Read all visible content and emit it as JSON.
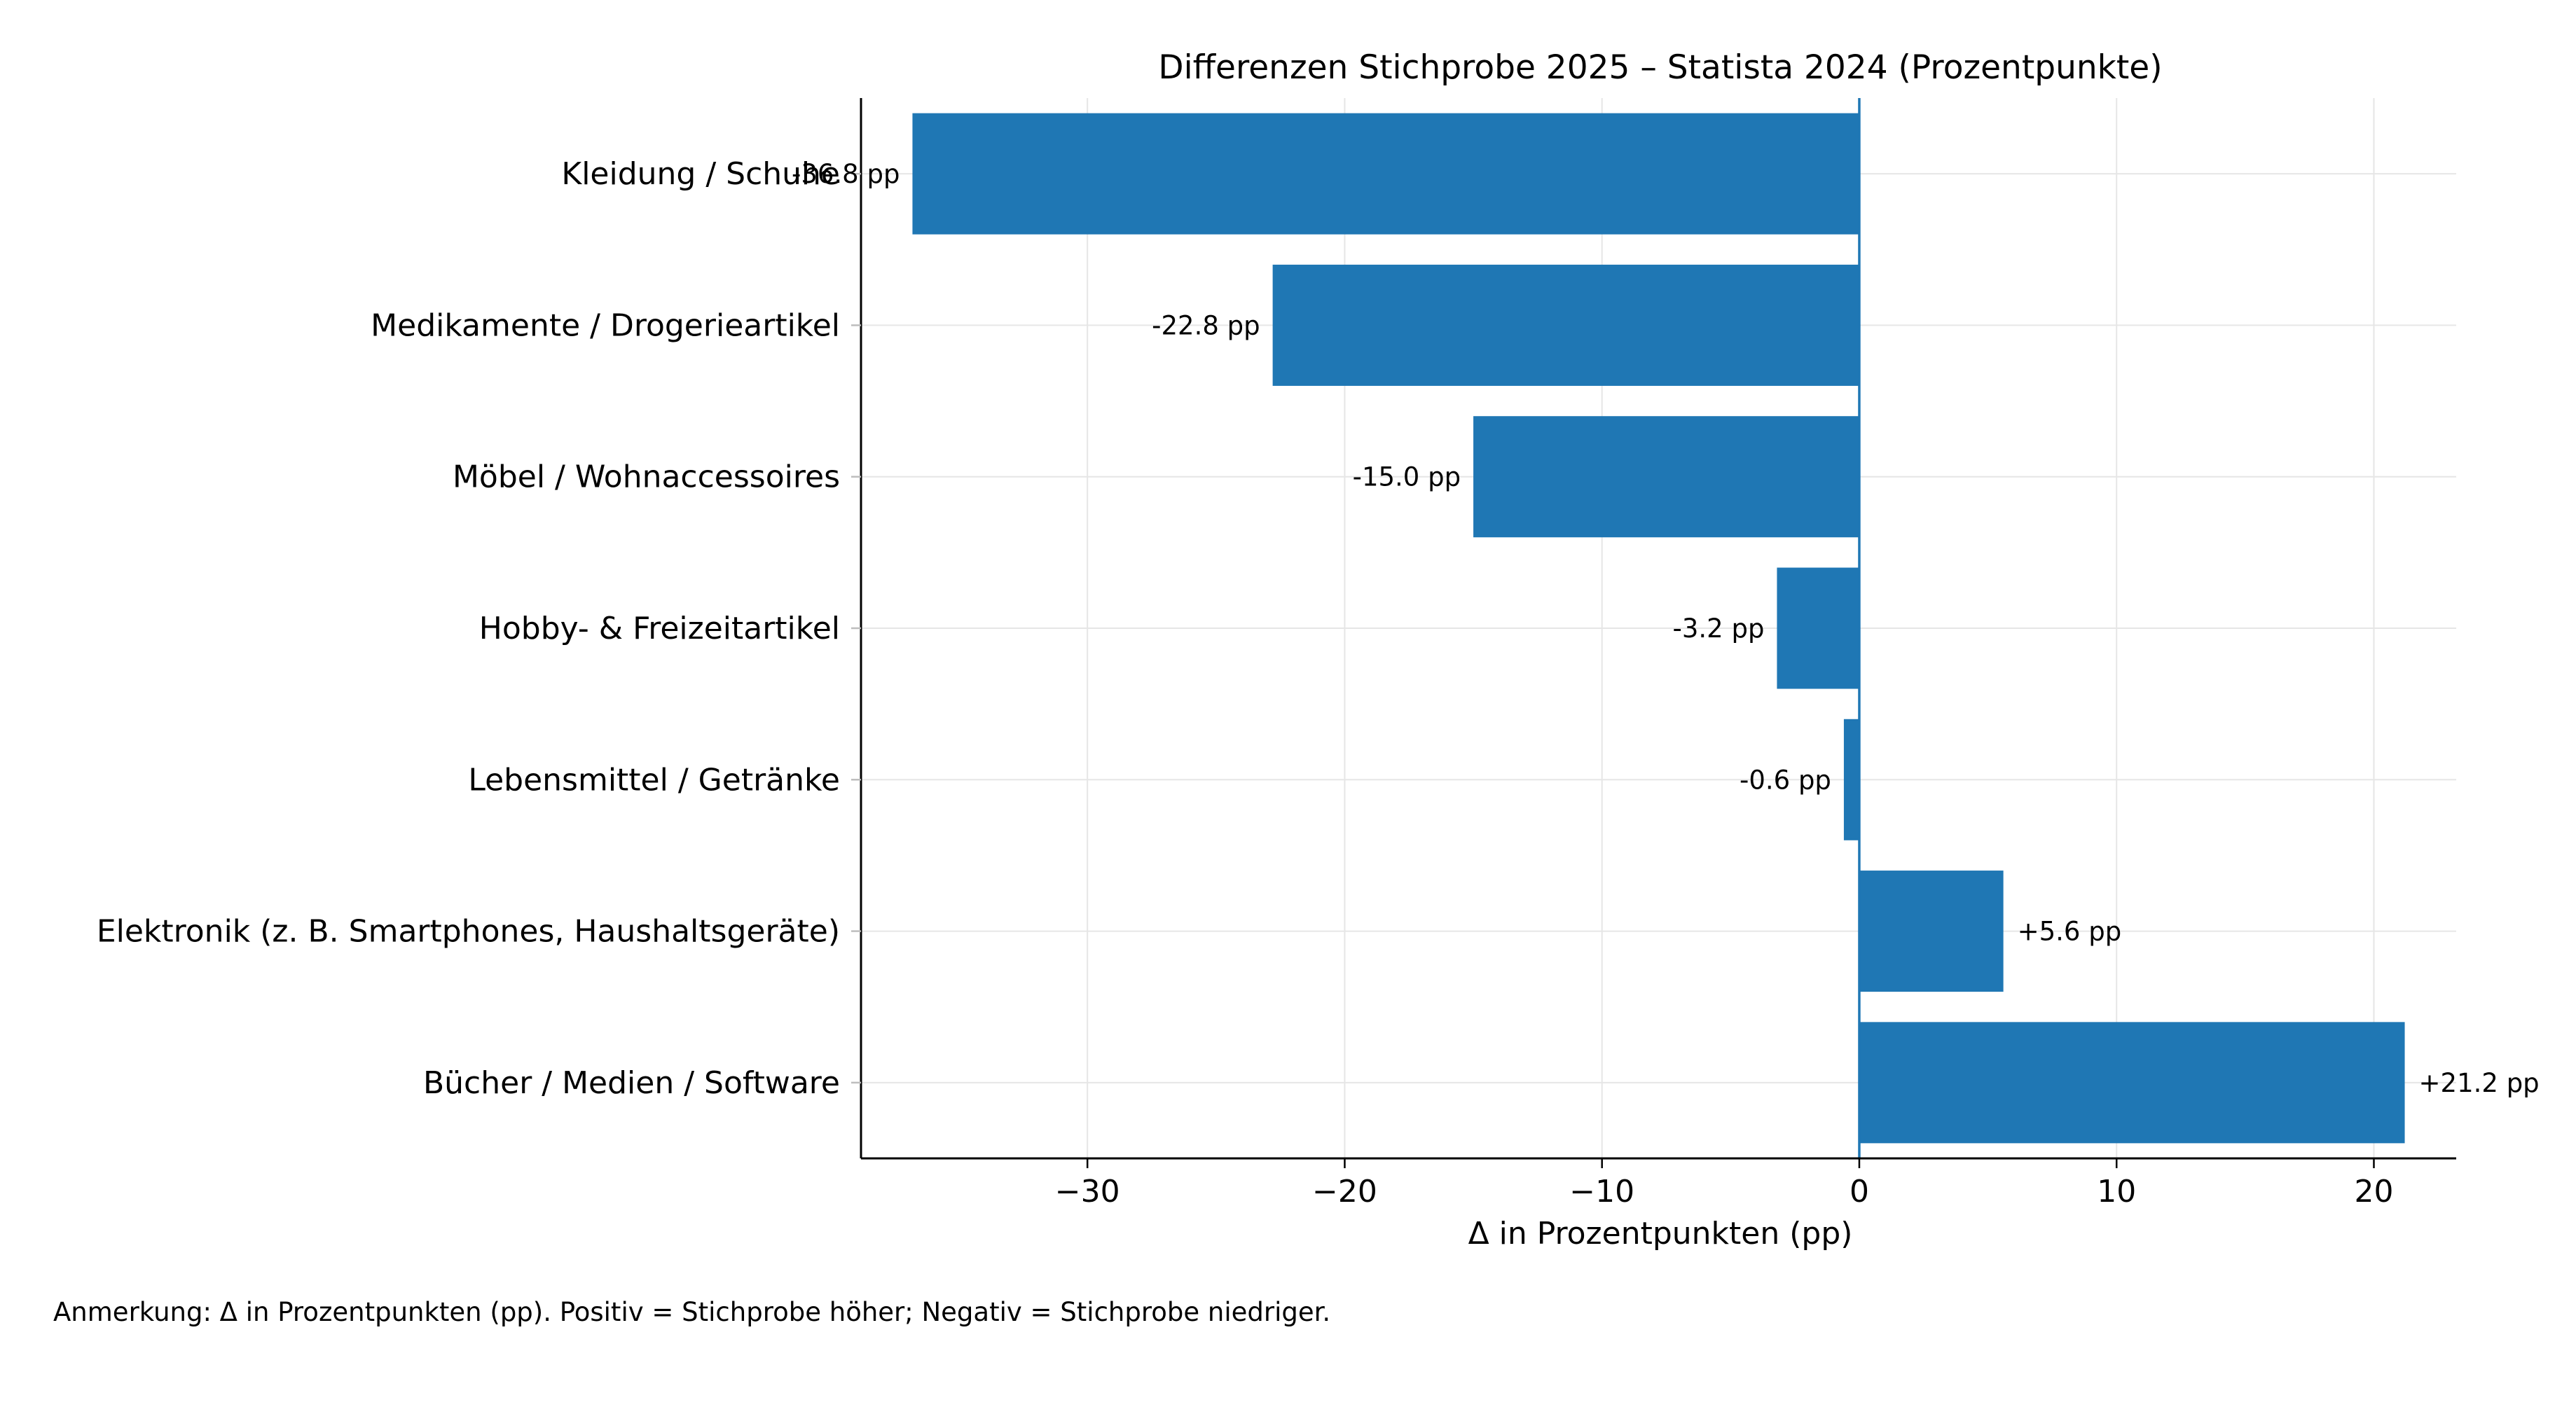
{
  "chart_data": {
    "type": "bar",
    "orientation": "horizontal",
    "title": "Differenzen Stichprobe 2025 – Statista 2024 (Prozentpunkte)",
    "xlabel": "Δ in Prozentpunkten (pp)",
    "ylabel": "",
    "categories": [
      "Kleidung / Schuhe",
      "Medikamente / Drogerieartikel",
      "Möbel / Wohnaccessoires",
      "Hobby- & Freizeitartikel",
      "Lebensmittel / Getränke",
      "Elektronik (z. B. Smartphones, Haushaltsgeräte)",
      "Bücher / Medien / Software"
    ],
    "values": [
      -36.8,
      -22.8,
      -15.0,
      -3.2,
      -0.6,
      5.6,
      21.2
    ],
    "value_labels": [
      "-36.8 pp",
      "-22.8 pp",
      "-15.0 pp",
      "-3.2 pp",
      "-0.6 pp",
      "+5.6 pp",
      "+21.2 pp"
    ],
    "xlim": [
      -38.8,
      23.2
    ],
    "xticks": [
      -30,
      -20,
      -10,
      0,
      10,
      20
    ],
    "xtick_labels": [
      "−30",
      "−20",
      "−10",
      "0",
      "10",
      "20"
    ],
    "grid": true,
    "bar_color": "#1f77b4",
    "zero_line_color": "#1f77b4"
  },
  "footnote": "Anmerkung: Δ in Prozentpunkten (pp). Positiv = Stichprobe höher; Negativ = Stichprobe niedriger."
}
